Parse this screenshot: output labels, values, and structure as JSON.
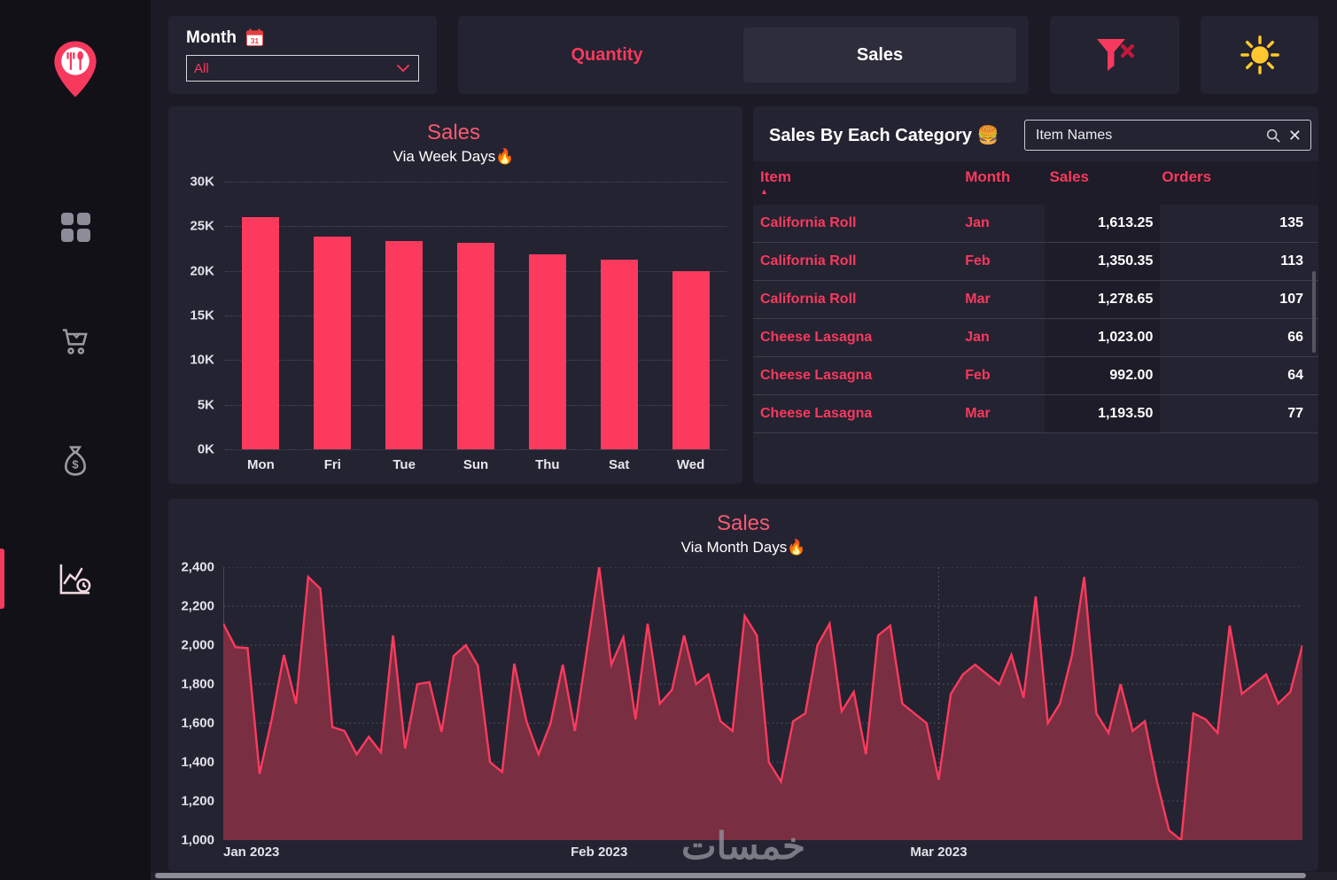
{
  "colors": {
    "background": "#1B1A25",
    "sidebar": "#121118",
    "panel": "#242331",
    "accent": "#F8395E",
    "bar": "#FC3A5D",
    "area_fill": "#802F43",
    "title_pink": "#F85A72",
    "sun_yellow": "#FFC82E"
  },
  "sidebar": {
    "logo_icon": "restaurant-location-pin-icon",
    "items": [
      {
        "id": "dashboard",
        "icon": "grid-icon",
        "active": false
      },
      {
        "id": "orders",
        "icon": "shopping-cart-icon",
        "active": false
      },
      {
        "id": "finance",
        "icon": "money-bag-icon",
        "active": false
      },
      {
        "id": "trends",
        "icon": "sales-trend-clock-chart-icon",
        "active": true
      }
    ]
  },
  "filters": {
    "month_label": "Month",
    "month_calendar_icon": "calendar-31-icon",
    "month_selected": "All"
  },
  "measure_toggle": {
    "options": [
      {
        "label": "Quantity",
        "selected": false
      },
      {
        "label": "Sales",
        "selected": true
      }
    ]
  },
  "actions": {
    "clear_filter_icon": "funnel-clear-icon",
    "theme_icon": "sun-icon"
  },
  "category_table": {
    "title": "Sales By Each Category 🍔",
    "search": {
      "placeholder": "Item Names",
      "icons": [
        "search-icon",
        "close-icon"
      ]
    },
    "columns": [
      {
        "label": "Item",
        "sort": "asc"
      },
      {
        "label": "Month",
        "sort": null
      },
      {
        "label": "Sales",
        "sort": null
      },
      {
        "label": "Orders",
        "sort": null
      }
    ],
    "rows": [
      [
        "California Roll",
        "Jan",
        "1,613.25",
        "135"
      ],
      [
        "California Roll",
        "Feb",
        "1,350.35",
        "113"
      ],
      [
        "California Roll",
        "Mar",
        "1,278.65",
        "107"
      ],
      [
        "Cheese Lasagna",
        "Jan",
        "1,023.00",
        "66"
      ],
      [
        "Cheese Lasagna",
        "Feb",
        "992.00",
        "64"
      ],
      [
        "Cheese Lasagna",
        "Mar",
        "1,193.50",
        "77"
      ]
    ]
  },
  "watermark": "خمسات",
  "chart_data": [
    {
      "type": "bar",
      "title": "Sales",
      "subtitle": "Via Week Days🔥",
      "categories": [
        "Mon",
        "Fri",
        "Tue",
        "Sun",
        "Thu",
        "Sat",
        "Wed"
      ],
      "values": [
        26000,
        23800,
        23350,
        23150,
        21850,
        21250,
        19950
      ],
      "y_ticks": [
        "30K",
        "25K",
        "20K",
        "15K",
        "10K",
        "5K",
        "0K"
      ],
      "ylim": [
        0,
        30000
      ],
      "xlabel": "",
      "ylabel": "",
      "grid": "dotted-horizontal",
      "legend": "none",
      "bar_color": "#FC3A5D"
    },
    {
      "type": "area",
      "title": "Sales",
      "subtitle": "Via Month Days🔥",
      "x_ticks": [
        "Jan 2023",
        "Feb 2023",
        "Mar 2023"
      ],
      "month_start_indices": [
        0,
        31,
        59
      ],
      "y_ticks": [
        "2,400",
        "2,200",
        "2,000",
        "1,800",
        "1,600",
        "1,400",
        "1,200",
        "1,000"
      ],
      "ylim": [
        1000,
        2400
      ],
      "xlabel": "",
      "ylabel": "",
      "grid": "dotted",
      "legend": "none",
      "line_color": "#FC3A5D",
      "fill_color": "#802F43",
      "values": [
        2110,
        1990,
        1985,
        1340,
        1620,
        1950,
        1700,
        2350,
        2290,
        1580,
        1560,
        1440,
        1530,
        1450,
        2050,
        1470,
        1800,
        1810,
        1555,
        1945,
        2000,
        1895,
        1400,
        1350,
        1905,
        1610,
        1440,
        1600,
        1900,
        1560,
        1980,
        2400,
        1900,
        2040,
        1620,
        2110,
        1700,
        1770,
        2050,
        1800,
        1850,
        1610,
        1560,
        2150,
        2050,
        1400,
        1300,
        1610,
        1650,
        2000,
        2110,
        1660,
        1760,
        1440,
        2050,
        2100,
        1700,
        1650,
        1600,
        1310,
        1750,
        1850,
        1900,
        1850,
        1800,
        1950,
        1730,
        2250,
        1600,
        1700,
        1950,
        2350,
        1650,
        1550,
        1800,
        1560,
        1610,
        1300,
        1050,
        1000,
        1650,
        1620,
        1550,
        2100,
        1750,
        1800,
        1850,
        1700,
        1760,
        2000
      ]
    }
  ]
}
